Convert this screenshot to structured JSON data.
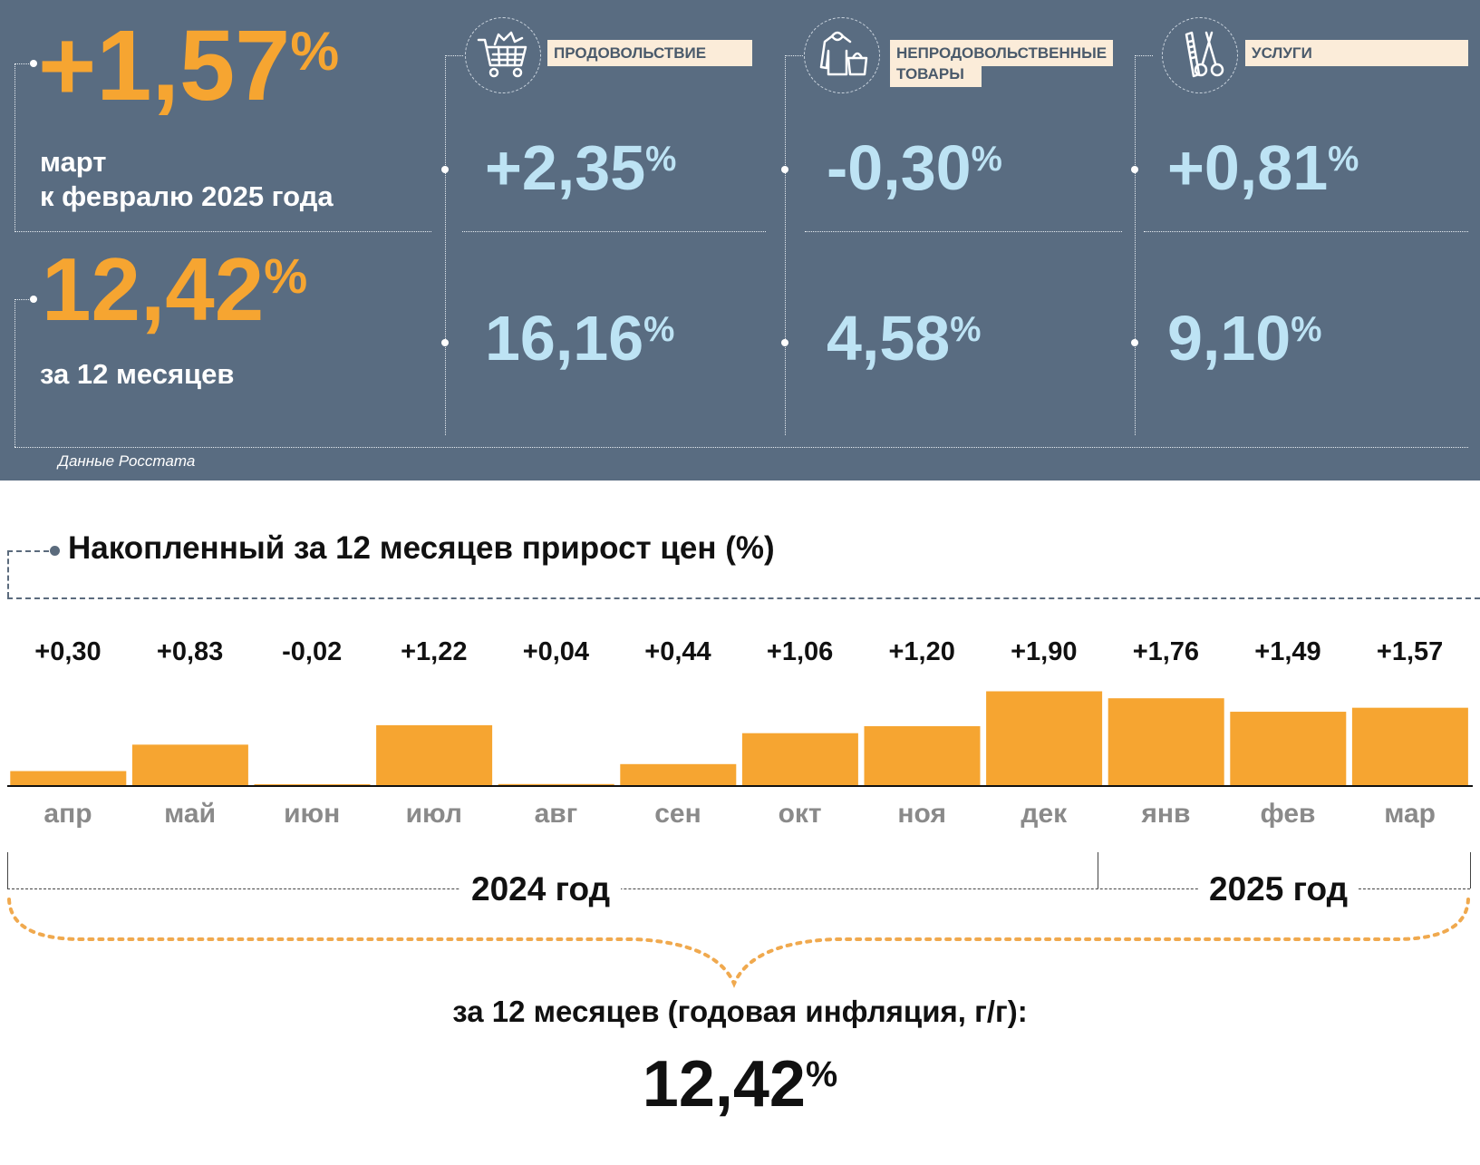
{
  "summary": {
    "monthly_value": "+1,57",
    "percent_sign": "%",
    "monthly_label_1": "март",
    "monthly_label_2": "к февралю 2025 года",
    "annual_value": "12,42",
    "annual_label": "за 12 месяцев",
    "source": "Данные Росстата"
  },
  "categories": [
    {
      "name": "ПРОДОВОЛЬСТВИЕ",
      "name_line2": "",
      "icon": "shopping-cart-icon",
      "monthly": "+2,35",
      "annual": "16,16"
    },
    {
      "name": "НЕПРОДОВОЛЬСТВЕННЫЕ",
      "name_line2": "ТОВАРЫ",
      "icon": "clothing-bag-icon",
      "monthly": "-0,30",
      "annual": "4,58"
    },
    {
      "name": "УСЛУГИ",
      "name_line2": "",
      "icon": "scissors-comb-icon",
      "monthly": "+0,81",
      "annual": "9,10"
    }
  ],
  "colors": {
    "panel_bg": "#596c81",
    "accent_orange": "#f6a531",
    "light_blue": "#bde3f4",
    "category_box": "#fbecd9"
  },
  "chart_data": {
    "type": "bar",
    "title": "Накопленный за 12 месяцев прирост цен (%)",
    "categories": [
      "апр",
      "май",
      "июн",
      "июл",
      "авг",
      "сен",
      "окт",
      "ноя",
      "дек",
      "янв",
      "фев",
      "мар"
    ],
    "values": [
      0.3,
      0.83,
      -0.02,
      1.22,
      0.04,
      0.44,
      1.06,
      1.2,
      1.9,
      1.76,
      1.49,
      1.57
    ],
    "value_labels": [
      "+0,30",
      "+0,83",
      "-0,02",
      "+1,22",
      "+0,04",
      "+0,44",
      "+1,06",
      "+1,20",
      "+1,90",
      "+1,76",
      "+1,49",
      "+1,57"
    ],
    "years": [
      {
        "label": "2024 год",
        "months": 9
      },
      {
        "label": "2025 год",
        "months": 3
      }
    ],
    "bar_color": "#f6a531",
    "total_label": "за 12 месяцев (годовая инфляция, г/г):",
    "total_value": "12,42",
    "percent_sign": "%"
  }
}
